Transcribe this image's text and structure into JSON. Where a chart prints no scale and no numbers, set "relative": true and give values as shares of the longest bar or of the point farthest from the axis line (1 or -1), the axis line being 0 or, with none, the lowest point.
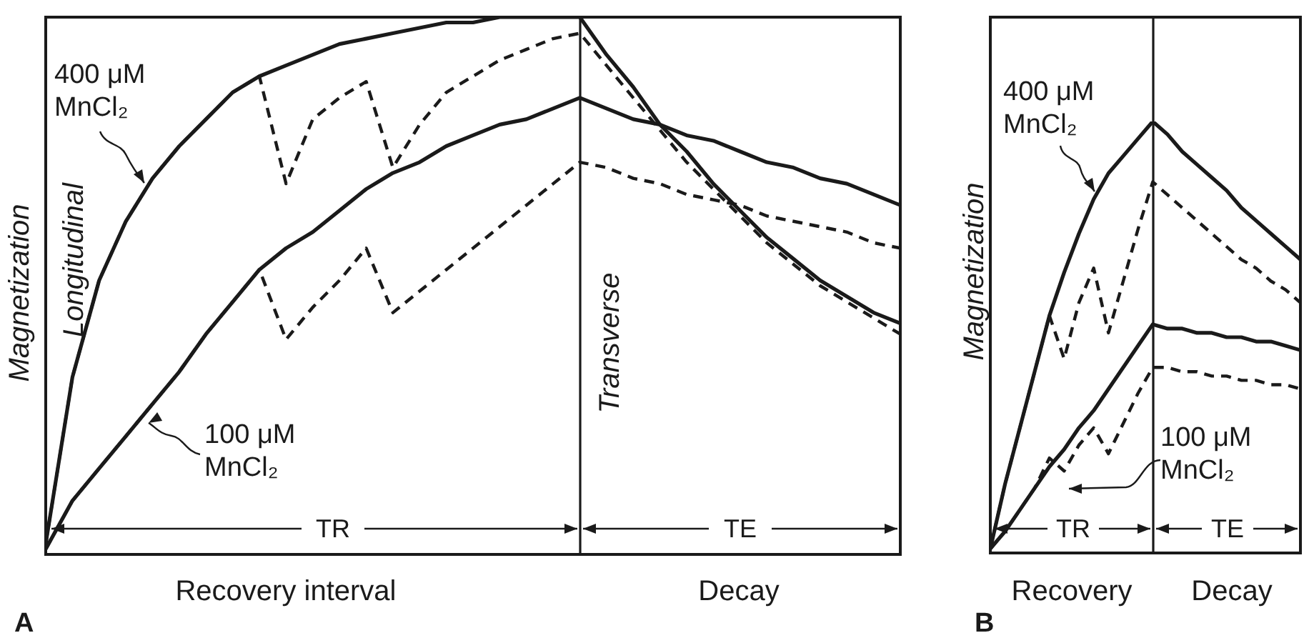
{
  "chart_data": [
    {
      "type": "line",
      "title": "A",
      "xlabel": "Recovery interval",
      "ylabel": "Magnetization",
      "relative": true,
      "marker": "none",
      "annotations": [
        "Decay",
        "Longitudinal",
        "Transverse",
        "TR",
        "TE"
      ],
      "categories": [
        null,
        null,
        null,
        null,
        null,
        null,
        null,
        null,
        null,
        null,
        null,
        null,
        null,
        null,
        null,
        null,
        null,
        null,
        null,
        null,
        null,
        null,
        null,
        null,
        null,
        null,
        null,
        null,
        null,
        null,
        null,
        null,
        null
      ],
      "series": [
        {
          "name": "400 μM MnCl₂",
          "color": "#1a1a1a",
          "line_style": "solid",
          "values": [
            0.02,
            0.33,
            0.51,
            0.62,
            0.7,
            0.76,
            0.81,
            0.86,
            0.89,
            0.91,
            0.93,
            0.95,
            0.96,
            0.97,
            0.98,
            0.99,
            0.99,
            1,
            1,
            1,
            1,
            0.93,
            0.87,
            0.8,
            0.75,
            0.69,
            0.64,
            0.59,
            0.55,
            0.51,
            0.48,
            0.45,
            0.43
          ]
        },
        {
          "color": "#1a1a1a",
          "line_style": "dashed",
          "values": [
            0.02,
            0.33,
            0.51,
            0.62,
            0.7,
            0.76,
            0.81,
            0.86,
            0.89,
            0.69,
            0.81,
            0.85,
            0.88,
            0.72,
            0.8,
            0.86,
            0.89,
            0.92,
            0.94,
            0.96,
            0.97,
            0.91,
            0.85,
            0.79,
            0.73,
            0.68,
            0.63,
            0.58,
            0.54,
            0.5,
            0.47,
            0.44,
            0.41
          ]
        },
        {
          "name": "100 μM MnCl₂",
          "color": "#1a1a1a",
          "line_style": "solid",
          "values": [
            0.01,
            0.1,
            0.16,
            0.22,
            0.28,
            0.34,
            0.41,
            0.47,
            0.53,
            0.57,
            0.6,
            0.64,
            0.68,
            0.71,
            0.73,
            0.76,
            0.78,
            0.8,
            0.81,
            0.83,
            0.85,
            0.83,
            0.81,
            0.8,
            0.78,
            0.77,
            0.75,
            0.73,
            0.72,
            0.7,
            0.69,
            0.67,
            0.65
          ]
        },
        {
          "color": "#1a1a1a",
          "line_style": "dashed",
          "values": [
            0.01,
            0.1,
            0.16,
            0.22,
            0.28,
            0.34,
            0.41,
            0.47,
            0.53,
            0.4,
            0.46,
            0.51,
            0.57,
            0.45,
            0.49,
            0.53,
            0.57,
            0.61,
            0.65,
            0.69,
            0.73,
            0.72,
            0.7,
            0.69,
            0.67,
            0.66,
            0.65,
            0.63,
            0.62,
            0.61,
            0.6,
            0.58,
            0.57
          ]
        }
      ]
    },
    {
      "type": "line",
      "title": "B",
      "xlabel": "Recovery",
      "ylabel": "Magnetization",
      "relative": true,
      "marker": "none",
      "annotations": [
        "Decay",
        "TR",
        "TE"
      ],
      "categories": [
        null,
        null,
        null,
        null,
        null,
        null,
        null,
        null,
        null,
        null,
        null,
        null,
        null,
        null,
        null,
        null,
        null,
        null,
        null,
        null,
        null,
        null
      ],
      "series": [
        {
          "name": "400 μM MnCl₂",
          "color": "#1a1a1a",
          "line_style": "solid",
          "values": [
            0.01,
            0.16,
            0.29,
            0.42,
            0.55,
            0.65,
            0.74,
            0.82,
            0.88,
            0.92,
            0.96,
            1,
            0.97,
            0.93,
            0.9,
            0.87,
            0.84,
            0.8,
            0.77,
            0.74,
            0.71,
            0.68
          ]
        },
        {
          "color": "#1a1a1a",
          "line_style": "dashed",
          "values": [
            0.01,
            0.16,
            0.29,
            0.42,
            0.55,
            0.45,
            0.58,
            0.66,
            0.51,
            0.63,
            0.75,
            0.86,
            0.83,
            0.8,
            0.77,
            0.74,
            0.71,
            0.68,
            0.66,
            0.63,
            0.61,
            0.58
          ]
        },
        {
          "name": "100 μM MnCl₂",
          "color": "#1a1a1a",
          "line_style": "solid",
          "values": [
            0.01,
            0.05,
            0.1,
            0.15,
            0.2,
            0.24,
            0.29,
            0.33,
            0.38,
            0.43,
            0.48,
            0.53,
            0.52,
            0.52,
            0.51,
            0.51,
            0.5,
            0.5,
            0.49,
            0.49,
            0.48,
            0.47
          ]
        },
        {
          "color": "#1a1a1a",
          "line_style": "dashed",
          "values": [
            0.01,
            0.05,
            0.1,
            0.15,
            0.22,
            0.19,
            0.25,
            0.29,
            0.23,
            0.3,
            0.37,
            0.43,
            0.43,
            0.42,
            0.42,
            0.41,
            0.41,
            0.4,
            0.4,
            0.39,
            0.39,
            0.38
          ]
        }
      ]
    }
  ]
}
